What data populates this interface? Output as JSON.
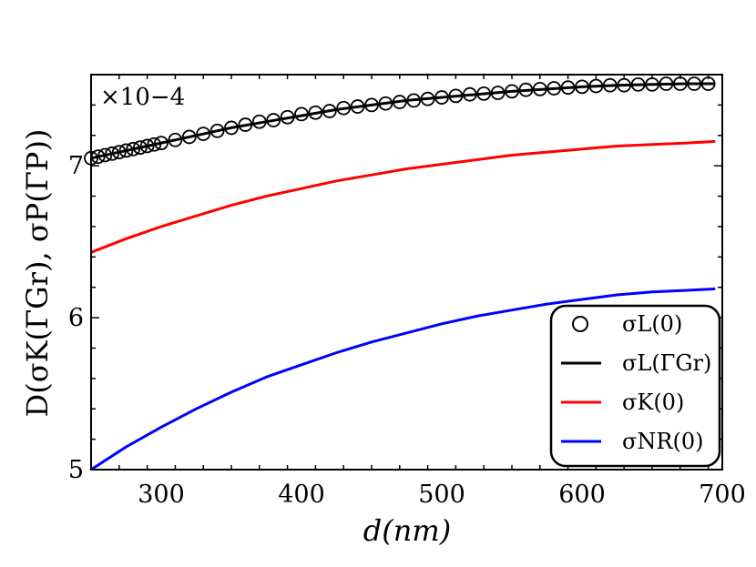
{
  "chart_data": {
    "type": "line",
    "title": "",
    "xlabel": "d(nm)",
    "ylabel": "D(σK(ΓGr), σP(ΓP))",
    "scale_label": "×10−4",
    "xlim": [
      250,
      700
    ],
    "ylim": [
      5,
      7.6
    ],
    "xticks": [
      300,
      400,
      500,
      600,
      700
    ],
    "yticks": [
      5,
      6,
      7
    ],
    "legend_position": "lower-right",
    "series": [
      {
        "name": "σL(0)",
        "style": "markers",
        "color": "#000000",
        "x": [
          250,
          255,
          260,
          265,
          270,
          275,
          280,
          285,
          290,
          295,
          300,
          310,
          320,
          330,
          340,
          350,
          360,
          370,
          380,
          390,
          400,
          410,
          420,
          430,
          440,
          450,
          460,
          470,
          480,
          490,
          500,
          510,
          520,
          530,
          540,
          550,
          560,
          570,
          580,
          590,
          600,
          610,
          620,
          630,
          640,
          650,
          660,
          670,
          680,
          690
        ],
        "y": [
          7.05,
          7.06,
          7.07,
          7.08,
          7.09,
          7.1,
          7.11,
          7.12,
          7.13,
          7.14,
          7.15,
          7.17,
          7.19,
          7.21,
          7.23,
          7.25,
          7.27,
          7.29,
          7.3,
          7.32,
          7.34,
          7.35,
          7.36,
          7.38,
          7.39,
          7.4,
          7.41,
          7.42,
          7.43,
          7.44,
          7.45,
          7.46,
          7.47,
          7.475,
          7.48,
          7.49,
          7.5,
          7.505,
          7.51,
          7.515,
          7.52,
          7.525,
          7.53,
          7.53,
          7.535,
          7.535,
          7.54,
          7.54,
          7.54,
          7.54
        ]
      },
      {
        "name": "σL(ΓGr)",
        "style": "line",
        "color": "#000000",
        "x": [
          250,
          275,
          300,
          325,
          350,
          375,
          400,
          425,
          450,
          475,
          500,
          525,
          550,
          575,
          600,
          625,
          650,
          675,
          695
        ],
        "y": [
          7.05,
          7.1,
          7.15,
          7.2,
          7.25,
          7.29,
          7.33,
          7.37,
          7.4,
          7.43,
          7.45,
          7.47,
          7.49,
          7.505,
          7.52,
          7.53,
          7.535,
          7.54,
          7.54
        ]
      },
      {
        "name": "σK(0)",
        "style": "line",
        "color": "#ff0000",
        "x": [
          250,
          275,
          300,
          325,
          350,
          375,
          400,
          425,
          450,
          475,
          500,
          525,
          550,
          575,
          600,
          625,
          650,
          675,
          695
        ],
        "y": [
          6.43,
          6.52,
          6.6,
          6.67,
          6.74,
          6.8,
          6.85,
          6.9,
          6.94,
          6.98,
          7.01,
          7.04,
          7.07,
          7.09,
          7.11,
          7.13,
          7.14,
          7.15,
          7.16
        ]
      },
      {
        "name": "σNR(0)",
        "style": "line",
        "color": "#0000ff",
        "x": [
          250,
          275,
          300,
          325,
          350,
          375,
          400,
          425,
          450,
          475,
          500,
          525,
          550,
          575,
          600,
          625,
          650,
          675,
          695
        ],
        "y": [
          5.0,
          5.15,
          5.28,
          5.4,
          5.51,
          5.61,
          5.69,
          5.77,
          5.84,
          5.9,
          5.96,
          6.01,
          6.05,
          6.09,
          6.12,
          6.15,
          6.17,
          6.18,
          6.19
        ]
      }
    ]
  }
}
